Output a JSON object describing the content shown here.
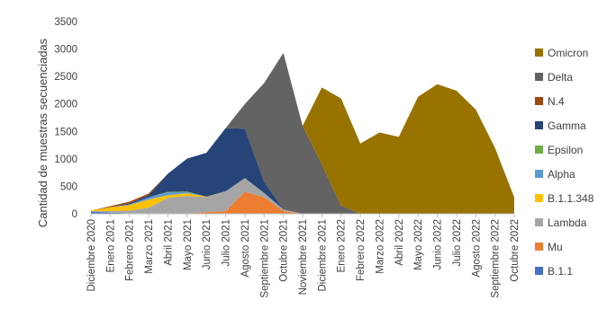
{
  "chart_data": {
    "type": "area",
    "stacked": true,
    "title": "",
    "xlabel": "",
    "ylabel": "Cantidad de muestras secuenciadas",
    "ylim": [
      0,
      3500
    ],
    "yticks": [
      0,
      500,
      1000,
      1500,
      2000,
      2500,
      3000,
      3500
    ],
    "grid": false,
    "legend_position": "right",
    "categories": [
      "Diciembre 2020",
      "Enero 2021",
      "Febrero 2021",
      "Marzo 2021",
      "Abril 2021",
      "Mayo 2021",
      "Junio 2021",
      "Julio 2021",
      "Agosto 2021",
      "Septiembre 2021",
      "Octubre 2021",
      "Noviembre 2021",
      "Diciembre 2021",
      "Enero 2022",
      "Febrero 2022",
      "Marzo 2022",
      "Abril 2022",
      "Mayo 2022",
      "Junio 2022",
      "Julio 2022",
      "Agosto 2022",
      "Septiembre 2022",
      "Octubre 2022"
    ],
    "series": [
      {
        "name": "B.1.1",
        "color": "#4472C4",
        "values": [
          40,
          20,
          10,
          10,
          10,
          5,
          0,
          0,
          0,
          0,
          0,
          0,
          0,
          0,
          0,
          0,
          0,
          0,
          0,
          0,
          0,
          0,
          0
        ]
      },
      {
        "name": "Mu",
        "color": "#ED7D31",
        "values": [
          0,
          0,
          0,
          0,
          0,
          0,
          30,
          50,
          400,
          300,
          50,
          0,
          0,
          0,
          0,
          0,
          0,
          0,
          0,
          0,
          0,
          0,
          0
        ]
      },
      {
        "name": "Lambda",
        "color": "#A5A5A5",
        "values": [
          10,
          30,
          50,
          100,
          280,
          320,
          270,
          360,
          250,
          80,
          30,
          0,
          0,
          0,
          0,
          0,
          0,
          0,
          0,
          0,
          0,
          0,
          0
        ]
      },
      {
        "name": "B.1.1.348",
        "color": "#FFC000",
        "values": [
          10,
          70,
          100,
          150,
          50,
          50,
          10,
          0,
          0,
          0,
          0,
          0,
          0,
          0,
          0,
          0,
          0,
          0,
          0,
          0,
          0,
          0,
          0
        ]
      },
      {
        "name": "Alpha",
        "color": "#5B9BD5",
        "values": [
          0,
          0,
          10,
          40,
          50,
          20,
          0,
          0,
          0,
          0,
          0,
          0,
          0,
          0,
          0,
          0,
          0,
          0,
          0,
          0,
          0,
          0,
          0
        ]
      },
      {
        "name": "Epsilon",
        "color": "#70AD47",
        "values": [
          0,
          0,
          0,
          0,
          10,
          10,
          0,
          0,
          0,
          0,
          0,
          0,
          0,
          0,
          0,
          0,
          0,
          0,
          0,
          0,
          0,
          0,
          0
        ]
      },
      {
        "name": "Gamma",
        "color": "#264478",
        "values": [
          0,
          0,
          20,
          40,
          330,
          600,
          800,
          1150,
          900,
          200,
          0,
          0,
          0,
          0,
          0,
          0,
          0,
          0,
          0,
          0,
          0,
          0,
          0
        ]
      },
      {
        "name": "N.4",
        "color": "#9E480E",
        "values": [
          0,
          20,
          30,
          30,
          0,
          0,
          0,
          0,
          0,
          0,
          0,
          0,
          0,
          0,
          0,
          0,
          0,
          0,
          0,
          0,
          0,
          0,
          0
        ]
      },
      {
        "name": "Delta",
        "color": "#636363",
        "values": [
          0,
          0,
          0,
          0,
          0,
          0,
          0,
          0,
          450,
          1800,
          2850,
          1600,
          900,
          150,
          0,
          0,
          0,
          0,
          0,
          0,
          0,
          0,
          0
        ]
      },
      {
        "name": "Omicron",
        "color": "#997300",
        "values": [
          0,
          0,
          0,
          0,
          0,
          0,
          0,
          0,
          0,
          0,
          0,
          0,
          1400,
          1950,
          1280,
          1480,
          1400,
          2130,
          2360,
          2240,
          1900,
          1200,
          300
        ]
      }
    ],
    "legend_order": [
      "Omicron",
      "Delta",
      "N.4",
      "Gamma",
      "Epsilon",
      "Alpha",
      "B.1.1.348",
      "Lambda",
      "Mu",
      "B.1.1"
    ]
  }
}
